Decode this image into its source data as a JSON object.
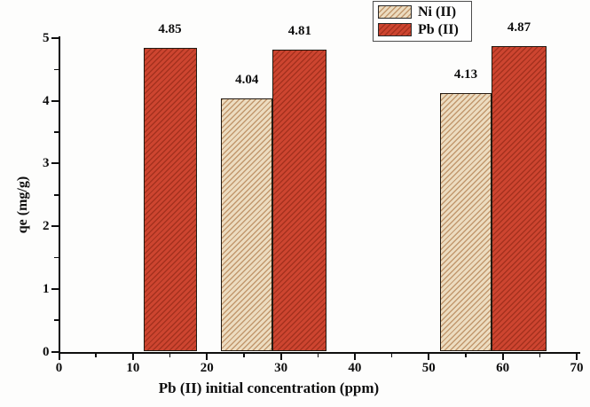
{
  "figure": {
    "background": "#fdfdfc"
  },
  "chart_data": {
    "type": "bar",
    "title": "",
    "xlabel": "Pb (II) initial concentration (ppm)",
    "ylabel": "qe (mg/g)",
    "xlim": [
      0,
      70
    ],
    "ylim": [
      0,
      5
    ],
    "x_major_ticks": [
      0,
      10,
      20,
      30,
      40,
      50,
      60,
      70
    ],
    "x_minor_ticks": [
      5,
      15,
      25,
      35,
      45,
      55,
      65
    ],
    "y_major_ticks": [
      0,
      1,
      2,
      3,
      4,
      5
    ],
    "y_minor_ticks": [
      0.5,
      1.5,
      2.5,
      3.5,
      4.5
    ],
    "grid": false,
    "legend_position": "top-center",
    "hatch_style": "diagonal-forward-slash",
    "series": [
      {
        "name": "Ni (II)",
        "fill": "#ecdcc0",
        "hatch": "#c2986e",
        "values": [
          4.04,
          4.13
        ]
      },
      {
        "name": "Pb (II)",
        "fill": "#cd4530",
        "hatch": "#a5311e",
        "values": [
          4.85,
          4.81,
          4.87
        ]
      }
    ],
    "bars": [
      {
        "series": "Pb (II)",
        "x_from": 11.4,
        "x_to": 18.6,
        "value": 4.85,
        "label": "4.85"
      },
      {
        "series": "Ni (II)",
        "x_from": 21.9,
        "x_to": 28.9,
        "value": 4.04,
        "label": "4.04"
      },
      {
        "series": "Pb (II)",
        "x_from": 28.9,
        "x_to": 36.2,
        "value": 4.81,
        "label": "4.81"
      },
      {
        "series": "Ni (II)",
        "x_from": 51.5,
        "x_to": 58.5,
        "value": 4.13,
        "label": "4.13"
      },
      {
        "series": "Pb (II)",
        "x_from": 58.5,
        "x_to": 65.9,
        "value": 4.87,
        "label": "4.87"
      }
    ],
    "bar_border_color": "#231a12",
    "axis_color": "#0e0e0e",
    "text_color": "#0e0e0e"
  }
}
